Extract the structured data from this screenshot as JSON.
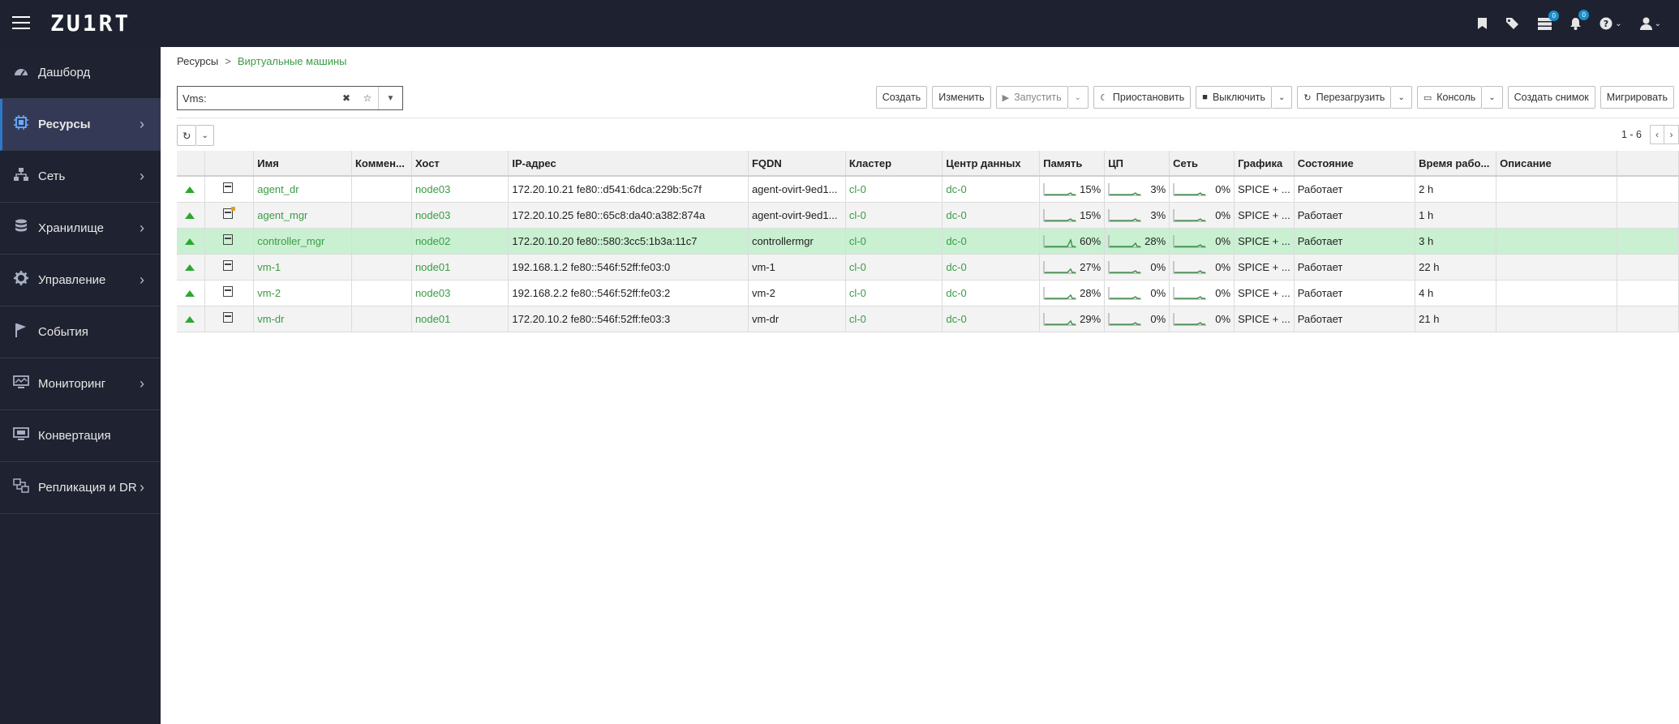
{
  "header": {
    "logo": "ZU1RT",
    "icons": [
      "bookmark-icon",
      "tags-icon",
      "tasks-icon",
      "bell-icon",
      "help-icon",
      "user-icon"
    ],
    "tasks_badge": "0",
    "bell_badge": "0"
  },
  "sidebar": {
    "items": [
      {
        "label": "Дашборд",
        "icon": "dashboard-icon",
        "arrow": false
      },
      {
        "label": "Ресурсы",
        "icon": "cpu-icon",
        "arrow": true,
        "active": true
      },
      {
        "label": "Сеть",
        "icon": "network-icon",
        "arrow": true
      },
      {
        "label": "Хранилище",
        "icon": "database-icon",
        "arrow": true
      },
      {
        "label": "Управление",
        "icon": "gear-icon",
        "arrow": true
      },
      {
        "label": "События",
        "icon": "flag-icon",
        "arrow": false
      },
      {
        "label": "Мониторинг",
        "icon": "monitor-icon",
        "arrow": true
      },
      {
        "label": "Конвертация",
        "icon": "convert-icon",
        "arrow": false
      },
      {
        "label": "Репликация и DR",
        "icon": "replication-icon",
        "arrow": true
      }
    ]
  },
  "breadcrumb": {
    "root": "Ресурсы",
    "separator": ">",
    "current": "Виртуальные машины"
  },
  "filter": {
    "value": "Vms:"
  },
  "toolbar": {
    "create": "Создать",
    "edit": "Изменить",
    "run": "Запустить",
    "suspend": "Приостановить",
    "shutdown": "Выключить",
    "reboot": "Перезагрузить",
    "console": "Консоль",
    "snapshot": "Создать снимок",
    "migrate": "Мигрировать"
  },
  "pager": {
    "range": "1 - 6"
  },
  "table": {
    "columns": [
      "",
      "",
      "Имя",
      "Коммен...",
      "Хост",
      "IP-адрес",
      "FQDN",
      "Кластер",
      "Центр данных",
      "Память",
      "ЦП",
      "Сеть",
      "Графика",
      "Состояние",
      "Время рабо...",
      "Описание"
    ],
    "rows": [
      {
        "name": "agent_dr",
        "comment": "",
        "host": "node03",
        "ip": "172.20.10.21 fe80::d541:6dca:229b:5c7f",
        "fqdn": "agent-ovirt-9ed1...",
        "cluster": "cl-0",
        "dc": "dc-0",
        "mem": "15%",
        "cpu": "3%",
        "net": "0%",
        "graphics": "SPICE + ...",
        "state": "Работает",
        "uptime": "2 h",
        "desc": "",
        "mgr": false
      },
      {
        "name": "agent_mgr",
        "comment": "",
        "host": "node03",
        "ip": "172.20.10.25 fe80::65c8:da40:a382:874a",
        "fqdn": "agent-ovirt-9ed1...",
        "cluster": "cl-0",
        "dc": "dc-0",
        "mem": "15%",
        "cpu": "3%",
        "net": "0%",
        "graphics": "SPICE + ...",
        "state": "Работает",
        "uptime": "1 h",
        "desc": "",
        "mgr": true
      },
      {
        "name": "controller_mgr",
        "comment": "",
        "host": "node02",
        "ip": "172.20.10.20 fe80::580:3cc5:1b3a:11c7",
        "fqdn": "controllermgr",
        "cluster": "cl-0",
        "dc": "dc-0",
        "mem": "60%",
        "cpu": "28%",
        "net": "0%",
        "graphics": "SPICE + ...",
        "state": "Работает",
        "uptime": "3 h",
        "desc": "",
        "mgr": false,
        "selected": true
      },
      {
        "name": "vm-1",
        "comment": "",
        "host": "node01",
        "ip": "192.168.1.2 fe80::546f:52ff:fe03:0",
        "fqdn": "vm-1",
        "cluster": "cl-0",
        "dc": "dc-0",
        "mem": "27%",
        "cpu": "0%",
        "net": "0%",
        "graphics": "SPICE + ...",
        "state": "Работает",
        "uptime": "22 h",
        "desc": "",
        "mgr": false
      },
      {
        "name": "vm-2",
        "comment": "",
        "host": "node03",
        "ip": "192.168.2.2 fe80::546f:52ff:fe03:2",
        "fqdn": "vm-2",
        "cluster": "cl-0",
        "dc": "dc-0",
        "mem": "28%",
        "cpu": "0%",
        "net": "0%",
        "graphics": "SPICE + ...",
        "state": "Работает",
        "uptime": "4 h",
        "desc": "",
        "mgr": false
      },
      {
        "name": "vm-dr",
        "comment": "",
        "host": "node01",
        "ip": "172.20.10.2 fe80::546f:52ff:fe03:3",
        "fqdn": "vm-dr",
        "cluster": "cl-0",
        "dc": "dc-0",
        "mem": "29%",
        "cpu": "0%",
        "net": "0%",
        "graphics": "SPICE + ...",
        "state": "Работает",
        "uptime": "21 h",
        "desc": "",
        "mgr": false
      }
    ]
  },
  "colors": {
    "accent_green": "#3a9b45",
    "sidebar_bg": "#1f2230",
    "selected_row": "#c9f0d1"
  }
}
